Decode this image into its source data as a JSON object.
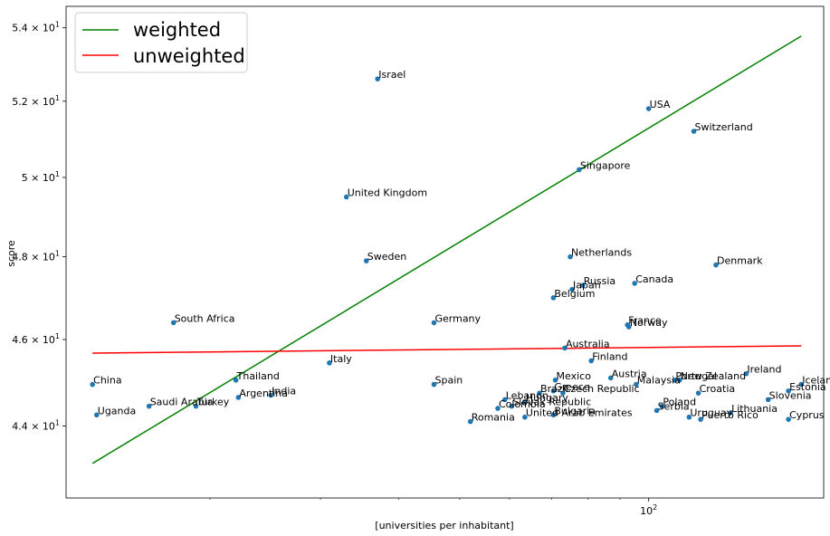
{
  "chart_data": {
    "type": "scatter",
    "xlabel": "[universities per inhabitant]",
    "ylabel": "score",
    "x_scale": "log",
    "y_scale": "log",
    "xlim": [
      11.8,
      190
    ],
    "ylim": [
      42.4,
      54.6
    ],
    "x_ticks": [
      {
        "value": 100,
        "label": "10",
        "exp": "2"
      }
    ],
    "y_ticks": [
      {
        "value": 44,
        "mant": "4.4",
        "exp": "1"
      },
      {
        "value": 46,
        "mant": "4.6",
        "exp": "1"
      },
      {
        "value": 48,
        "mant": "4.8",
        "exp": "1"
      },
      {
        "value": 50,
        "mant": "5",
        "exp": "1"
      },
      {
        "value": 52,
        "mant": "5.2",
        "exp": "1"
      },
      {
        "value": 54,
        "mant": "5.4",
        "exp": "1"
      }
    ],
    "point_color": "#1f77b4",
    "legend": {
      "placement": "upper-left",
      "entries": [
        {
          "label": "weighted",
          "color": "#008000"
        },
        {
          "label": "unweighted",
          "color": "#ff0000"
        }
      ]
    },
    "lines": [
      {
        "name": "weighted",
        "color": "#008000",
        "x": [
          13.0,
          175.0
        ],
        "y": [
          43.16,
          53.77
        ]
      },
      {
        "name": "unweighted",
        "color": "#ff0000",
        "x": [
          13.0,
          175.0
        ],
        "y": [
          45.68,
          45.85
        ]
      }
    ],
    "points": [
      {
        "label": "Israel",
        "x": 37.0,
        "y": 52.6
      },
      {
        "label": "USA",
        "x": 100.0,
        "y": 51.8
      },
      {
        "label": "Switzerland",
        "x": 118.0,
        "y": 51.2
      },
      {
        "label": "Singapore",
        "x": 77.5,
        "y": 50.2
      },
      {
        "label": "United Kingdom",
        "x": 33.0,
        "y": 49.5
      },
      {
        "label": "Netherlands",
        "x": 75.0,
        "y": 48.0
      },
      {
        "label": "Denmark",
        "x": 128.0,
        "y": 47.8
      },
      {
        "label": "Sweden",
        "x": 35.5,
        "y": 47.9
      },
      {
        "label": "Russia",
        "x": 78.5,
        "y": 47.3
      },
      {
        "label": "Canada",
        "x": 95.0,
        "y": 47.35
      },
      {
        "label": "Japan",
        "x": 75.5,
        "y": 47.2
      },
      {
        "label": "Belgium",
        "x": 70.5,
        "y": 47.0
      },
      {
        "label": "South Africa",
        "x": 17.5,
        "y": 46.4
      },
      {
        "label": "Germany",
        "x": 45.5,
        "y": 46.4
      },
      {
        "label": "France",
        "x": 92.5,
        "y": 46.35
      },
      {
        "label": "Norway",
        "x": 93.0,
        "y": 46.3
      },
      {
        "label": "Australia",
        "x": 73.5,
        "y": 45.8
      },
      {
        "label": "Finland",
        "x": 81.0,
        "y": 45.5
      },
      {
        "label": "Italy",
        "x": 31.0,
        "y": 45.45
      },
      {
        "label": "Ireland",
        "x": 143.0,
        "y": 45.2
      },
      {
        "label": "New Zealand",
        "x": 112.0,
        "y": 45.05
      },
      {
        "label": "Portugal",
        "x": 110.0,
        "y": 45.05
      },
      {
        "label": "Austria",
        "x": 87.0,
        "y": 45.1
      },
      {
        "label": "Mexico",
        "x": 71.0,
        "y": 45.05
      },
      {
        "label": "Malaysia",
        "x": 95.5,
        "y": 44.95
      },
      {
        "label": "Iceland",
        "x": 175.0,
        "y": 44.95
      },
      {
        "label": "Spain",
        "x": 45.5,
        "y": 44.95
      },
      {
        "label": "Croatia",
        "x": 120.0,
        "y": 44.75
      },
      {
        "label": "Estonia",
        "x": 167.0,
        "y": 44.8
      },
      {
        "label": "Czech Republic",
        "x": 73.0,
        "y": 44.75
      },
      {
        "label": "Greece",
        "x": 70.5,
        "y": 44.8
      },
      {
        "label": "Brazil",
        "x": 67.0,
        "y": 44.75
      },
      {
        "label": "Slovenia",
        "x": 155.0,
        "y": 44.6
      },
      {
        "label": "China",
        "x": 13.0,
        "y": 44.95
      },
      {
        "label": "Thailand",
        "x": 22.0,
        "y": 45.05
      },
      {
        "label": "India",
        "x": 25.0,
        "y": 44.7
      },
      {
        "label": "Argentina",
        "x": 22.2,
        "y": 44.65
      },
      {
        "label": "Saudi Arabia",
        "x": 16.0,
        "y": 44.45
      },
      {
        "label": "Turkey",
        "x": 19.0,
        "y": 44.45
      },
      {
        "label": "Lebanon",
        "x": 59.0,
        "y": 44.6
      },
      {
        "label": "Hungary",
        "x": 63.5,
        "y": 44.55
      },
      {
        "label": "Slovak Republic",
        "x": 60.5,
        "y": 44.45
      },
      {
        "label": "Colombia",
        "x": 57.5,
        "y": 44.4
      },
      {
        "label": "Poland",
        "x": 105.0,
        "y": 44.45
      },
      {
        "label": "Serbia",
        "x": 103.0,
        "y": 44.35
      },
      {
        "label": "Bulgaria",
        "x": 70.5,
        "y": 44.25
      },
      {
        "label": "Lithuania",
        "x": 135.0,
        "y": 44.3
      },
      {
        "label": "Uruguay",
        "x": 116.0,
        "y": 44.2
      },
      {
        "label": "United Arab Emirates",
        "x": 63.5,
        "y": 44.2
      },
      {
        "label": "Puerto Rico",
        "x": 121.0,
        "y": 44.15
      },
      {
        "label": "Cyprus",
        "x": 167.0,
        "y": 44.15
      },
      {
        "label": "Uganda",
        "x": 13.2,
        "y": 44.25
      },
      {
        "label": "Romania",
        "x": 52.0,
        "y": 44.1
      }
    ]
  }
}
